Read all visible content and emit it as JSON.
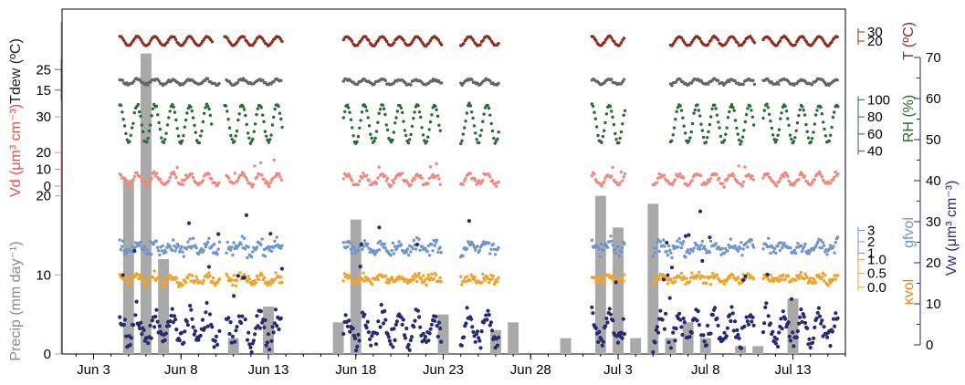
{
  "chart_data": {
    "type": "scatter",
    "x": {
      "tick_labels": [
        "Jun 3",
        "Jun 8",
        "Jun 13",
        "Jun 18",
        "Jun 23",
        "Jun 28",
        "Jul 3",
        "Jul 8",
        "Jul 13"
      ],
      "tick_days": [
        3,
        8,
        13,
        18,
        23,
        28,
        33,
        38,
        43
      ],
      "range_days": [
        1.2,
        46.0
      ],
      "day_convention": "day of June (Jul 1 = 31)"
    },
    "colors": {
      "t": "#8b2f20",
      "tdew": "#646464",
      "rh": "#2a6b32",
      "vd": "#ee8a7d",
      "gf": "#7095cc",
      "kvol": "#f0a32a",
      "vw": "#262a72",
      "precip": "#a9a9a9"
    },
    "series": [
      {
        "key": "t",
        "name": "T",
        "unit": "(ºC)",
        "side": "right1",
        "ticks": [
          20,
          30
        ],
        "range": [
          10,
          40
        ],
        "base": 20,
        "amp": 5,
        "jitter": 1.0,
        "step": 0.08,
        "segments": [
          [
            4.5,
            9.8
          ],
          [
            10.5,
            13.8
          ],
          [
            17.3,
            22.9
          ],
          [
            24.0,
            26.2
          ],
          [
            31.5,
            33.4
          ],
          [
            36.0,
            40.8
          ],
          [
            41.3,
            45.6
          ]
        ]
      },
      {
        "key": "tdew",
        "name": "Tdew",
        "unit": "(ºC)",
        "side": "left",
        "ticks": [
          15,
          25
        ],
        "range": [
          10,
          30
        ],
        "base": 19,
        "amp": 1.2,
        "jitter": 1.0,
        "step": 0.08,
        "segments": [
          [
            4.5,
            10.2
          ],
          [
            10.6,
            13.8
          ],
          [
            17.3,
            22.9
          ],
          [
            24.0,
            26.2
          ],
          [
            31.5,
            33.4
          ],
          [
            36.0,
            40.8
          ],
          [
            41.3,
            45.6
          ]
        ]
      },
      {
        "key": "rh",
        "name": "RH",
        "unit": "(%)",
        "side": "right1",
        "ticks": [
          40,
          60,
          80,
          100
        ],
        "range": [
          30,
          110
        ],
        "base": 72,
        "amp": 22,
        "jitter": 3.0,
        "step": 0.07,
        "segments": [
          [
            4.5,
            9.8
          ],
          [
            10.5,
            13.8
          ],
          [
            17.3,
            22.9
          ],
          [
            24.0,
            26.2
          ],
          [
            31.5,
            33.4
          ],
          [
            36.0,
            40.8
          ],
          [
            41.3,
            45.6
          ]
        ]
      },
      {
        "key": "vd",
        "name": "Vd",
        "unit": "(μm³ cm⁻³)",
        "side": "left",
        "ticks": [
          0,
          10,
          20
        ],
        "range": [
          -6,
          32
        ],
        "base": 4,
        "amp": 3,
        "jitter": 2.5,
        "step": 0.07,
        "segments": [
          [
            4.5,
            10.2
          ],
          [
            10.6,
            13.8
          ],
          [
            17.3,
            22.9
          ],
          [
            24.0,
            26.2
          ],
          [
            31.5,
            33.4
          ],
          [
            35.0,
            40.8
          ],
          [
            41.3,
            45.6
          ]
        ]
      },
      {
        "key": "gf",
        "name": "gfvol",
        "unit": "",
        "side": "right1",
        "ticks": [
          1,
          2,
          3
        ],
        "range": [
          -1.2,
          6
        ],
        "base": 1.5,
        "amp": 0.3,
        "jitter": 0.9,
        "step": 0.06,
        "segments": [
          [
            4.5,
            10.2
          ],
          [
            10.6,
            13.8
          ],
          [
            17.3,
            22.9
          ],
          [
            24.0,
            26.2
          ],
          [
            31.5,
            33.4
          ],
          [
            35.0,
            40.8
          ],
          [
            41.3,
            45.6
          ]
        ]
      },
      {
        "key": "kvol",
        "name": "κvol",
        "unit": "",
        "side": "right1",
        "ticks": [
          0.0,
          0.5,
          1.0
        ],
        "range": [
          -0.5,
          2.2
        ],
        "base": 0.3,
        "amp": 0.1,
        "jitter": 0.25,
        "step": 0.06,
        "segments": [
          [
            4.5,
            10.2
          ],
          [
            10.6,
            13.8
          ],
          [
            17.3,
            22.9
          ],
          [
            24.0,
            26.2
          ],
          [
            31.5,
            33.4
          ],
          [
            35.0,
            40.8
          ],
          [
            41.3,
            45.6
          ]
        ]
      },
      {
        "key": "vw",
        "name": "Vw",
        "unit": "(μm³ cm⁻³)",
        "side": "right2",
        "ticks": [
          0,
          10,
          20,
          30,
          40,
          50,
          60,
          70
        ],
        "range": [
          0,
          70
        ],
        "base": 4,
        "amp": 3,
        "jitter": 4.0,
        "step": 0.06,
        "segments": [
          [
            4.5,
            10.2
          ],
          [
            10.6,
            13.8
          ],
          [
            17.3,
            22.9
          ],
          [
            24.0,
            26.2
          ],
          [
            31.5,
            33.4
          ],
          [
            35.0,
            40.8
          ],
          [
            41.3,
            45.6
          ]
        ]
      }
    ],
    "precip": {
      "name": "Precip",
      "unit": "(mm day⁻¹)",
      "side": "left",
      "ticks": [
        0,
        10,
        20,
        30
      ],
      "range": [
        0,
        42
      ],
      "days": [
        5,
        6,
        7,
        8,
        9,
        10,
        11,
        13,
        17,
        18,
        23,
        26,
        27,
        30,
        32,
        33,
        34,
        35,
        36,
        37,
        38,
        40,
        41,
        43
      ],
      "values": [
        22,
        38,
        12,
        0,
        0,
        0,
        2,
        6,
        4,
        17,
        5,
        3,
        4,
        2,
        20,
        16,
        2,
        19,
        2,
        4,
        2,
        1,
        1,
        7
      ]
    },
    "grid": false,
    "legend": "none"
  }
}
